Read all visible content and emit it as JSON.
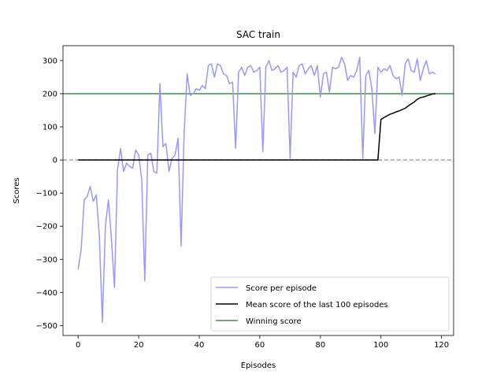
{
  "chart_data": {
    "type": "line",
    "title": "SAC train",
    "xlabel": "Episodes",
    "ylabel": "Scores",
    "xlim": [
      -5,
      124
    ],
    "ylim": [
      -530,
      345
    ],
    "xticks": [
      0,
      20,
      40,
      60,
      80,
      100,
      120
    ],
    "yticks": [
      -500,
      -400,
      -300,
      -200,
      -100,
      0,
      100,
      200,
      300
    ],
    "grid": false,
    "legend_position": "lower-right",
    "colors": {
      "score": "#9999f5",
      "mean": "#000000",
      "winning": "#2ca02c",
      "zero": "#a0a0a0"
    },
    "series": [
      {
        "name": "Score per episode",
        "x": [
          0,
          1,
          2,
          3,
          4,
          5,
          6,
          7,
          8,
          9,
          10,
          11,
          12,
          13,
          14,
          15,
          16,
          17,
          18,
          19,
          20,
          21,
          22,
          23,
          24,
          25,
          26,
          27,
          28,
          29,
          30,
          31,
          32,
          33,
          34,
          35,
          36,
          37,
          38,
          39,
          40,
          41,
          42,
          43,
          44,
          45,
          46,
          47,
          48,
          49,
          50,
          51,
          52,
          53,
          54,
          55,
          56,
          57,
          58,
          59,
          60,
          61,
          62,
          63,
          64,
          65,
          66,
          67,
          68,
          69,
          70,
          71,
          72,
          73,
          74,
          75,
          76,
          77,
          78,
          79,
          80,
          81,
          82,
          83,
          84,
          85,
          86,
          87,
          88,
          89,
          90,
          91,
          92,
          93,
          94,
          95,
          96,
          97,
          98,
          99,
          100,
          101,
          102,
          103,
          104,
          105,
          106,
          107,
          108,
          109,
          110,
          111,
          112,
          113,
          114,
          115,
          116,
          117,
          118
        ],
        "values": [
          -330,
          -270,
          -120,
          -110,
          -80,
          -125,
          -105,
          -230,
          -490,
          -200,
          -120,
          -240,
          -385,
          -30,
          35,
          -35,
          -10,
          -20,
          -25,
          30,
          15,
          -60,
          -365,
          15,
          20,
          -35,
          -40,
          230,
          40,
          50,
          -35,
          5,
          15,
          65,
          -260,
          80,
          260,
          195,
          200,
          215,
          210,
          225,
          215,
          285,
          290,
          250,
          290,
          285,
          260,
          255,
          230,
          235,
          35,
          265,
          280,
          255,
          280,
          285,
          265,
          270,
          280,
          25,
          280,
          300,
          270,
          275,
          285,
          265,
          270,
          280,
          5,
          265,
          250,
          285,
          290,
          260,
          275,
          285,
          255,
          285,
          190,
          260,
          265,
          205,
          280,
          275,
          280,
          310,
          290,
          240,
          255,
          250,
          270,
          310,
          5,
          255,
          270,
          215,
          80,
          280,
          265,
          275,
          270,
          285,
          255,
          245,
          250,
          195,
          290,
          305,
          270,
          265,
          305,
          240,
          275,
          300,
          260,
          265,
          260
        ]
      },
      {
        "name": "Mean score of the last 100 episodes",
        "x": [
          0,
          99,
          100,
          101,
          102,
          103,
          104,
          105,
          106,
          107,
          108,
          109,
          110,
          111,
          112,
          113,
          114,
          115,
          116,
          117,
          118
        ],
        "values": [
          0,
          0,
          122,
          128,
          133,
          138,
          141,
          145,
          148,
          152,
          156,
          163,
          169,
          175,
          183,
          188,
          190,
          193,
          196,
          199,
          200
        ]
      },
      {
        "name": "Winning score",
        "y": 200
      },
      {
        "y": 0
      }
    ]
  }
}
